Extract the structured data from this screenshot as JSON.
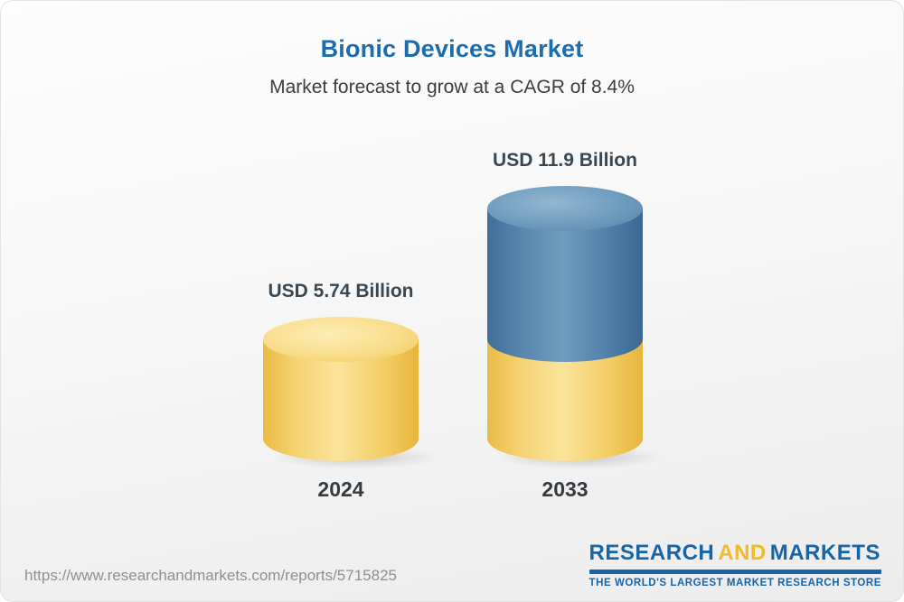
{
  "header": {
    "title": "Bionic Devices Market",
    "subtitle": "Market forecast to grow at a CAGR of 8.4%"
  },
  "chart_data": {
    "type": "bar",
    "variant": "3d-cylinder",
    "title": "Bionic Devices Market",
    "subtitle": "Market forecast to grow at a CAGR of 8.4%",
    "cagr_pct": 8.4,
    "categories": [
      "2024",
      "2033"
    ],
    "values": [
      5.74,
      11.9
    ],
    "unit": "USD Billion",
    "value_labels": [
      "USD 5.74 Billion",
      "USD 11.9 Billion"
    ],
    "colors": {
      "base_segment": "#F2CB61",
      "growth_segment": "#4E7DA7"
    },
    "legend": "none",
    "grid": "off"
  },
  "footer": {
    "url": "https://www.researchandmarkets.com/reports/5715825",
    "logo": {
      "word1": "RESEARCH",
      "word2": "AND",
      "word3": "MARKETS",
      "tagline": "THE WORLD'S LARGEST MARKET RESEARCH STORE",
      "blue": "#1565A9",
      "gold": "#F3B92C"
    }
  }
}
